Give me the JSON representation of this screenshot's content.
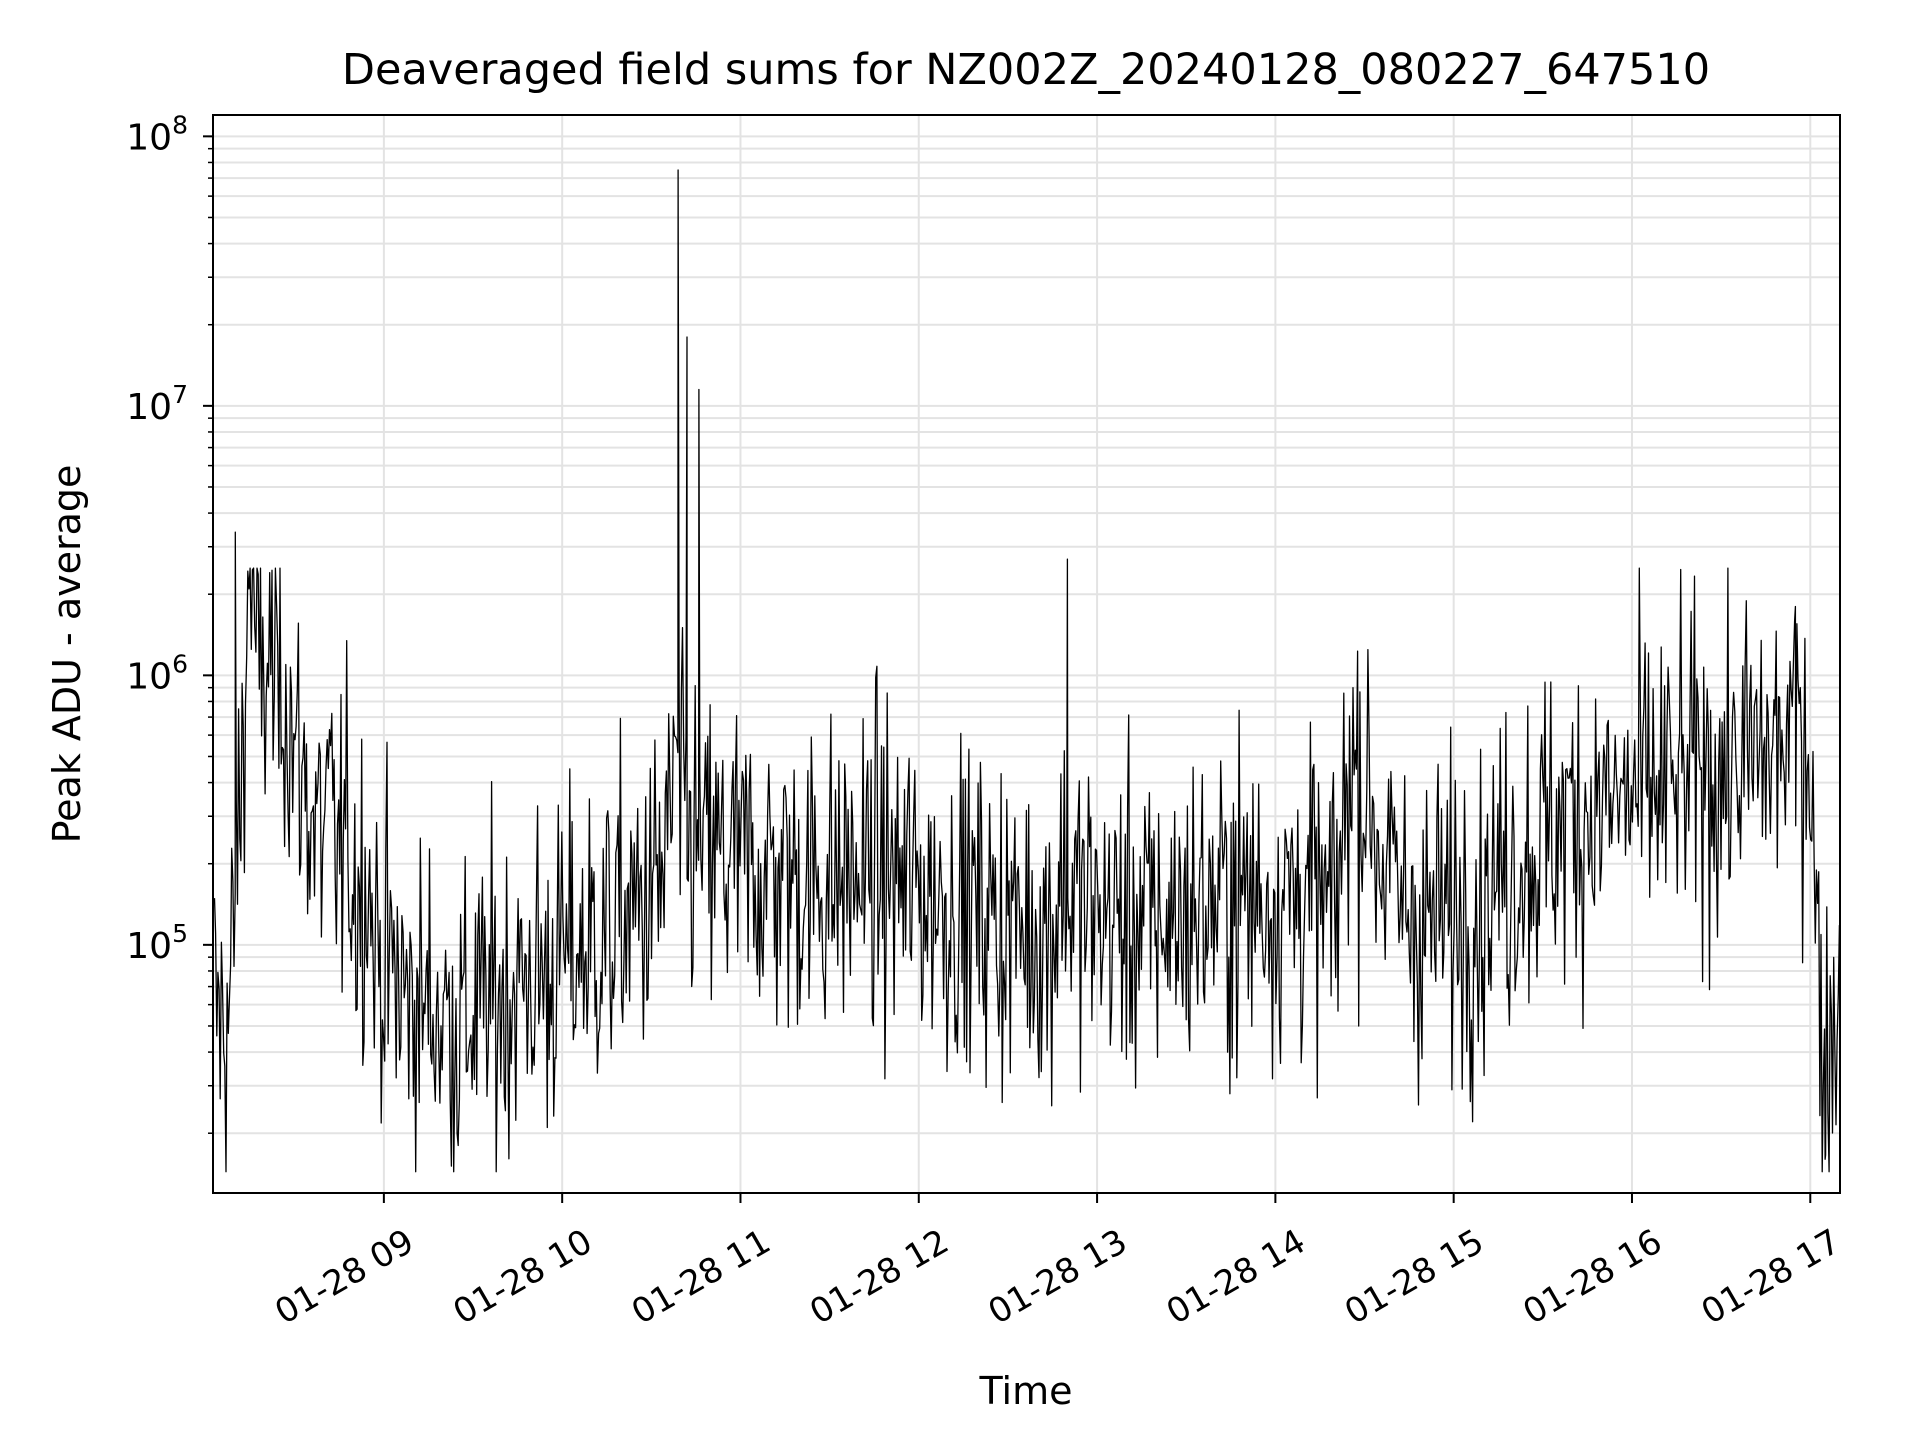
{
  "chart_data": {
    "type": "line",
    "title": "Deaveraged field sums for NZ002Z_20240128_080227_647510",
    "xlabel": "Time",
    "ylabel": "Peak ADU - average",
    "yscale": "log",
    "ylim": [
      12000,
      120000000
    ],
    "xlim": [
      "2024-01-28 08:02:30",
      "2024-01-28 17:10:00"
    ],
    "grid": true,
    "x_ticks": [
      {
        "time": "2024-01-28 09:00",
        "label": "01-28 09"
      },
      {
        "time": "2024-01-28 10:00",
        "label": "01-28 10"
      },
      {
        "time": "2024-01-28 11:00",
        "label": "01-28 11"
      },
      {
        "time": "2024-01-28 12:00",
        "label": "01-28 12"
      },
      {
        "time": "2024-01-28 13:00",
        "label": "01-28 13"
      },
      {
        "time": "2024-01-28 14:00",
        "label": "01-28 14"
      },
      {
        "time": "2024-01-28 15:00",
        "label": "01-28 15"
      },
      {
        "time": "2024-01-28 16:00",
        "label": "01-28 16"
      },
      {
        "time": "2024-01-28 17:00",
        "label": "01-28 17"
      }
    ],
    "y_ticks": [
      {
        "value": 100000,
        "base": "10",
        "exp": "5"
      },
      {
        "value": 1000000,
        "base": "10",
        "exp": "6"
      },
      {
        "value": 10000000,
        "base": "10",
        "exp": "7"
      },
      {
        "value": 100000000,
        "base": "10",
        "exp": "8"
      }
    ],
    "series": [
      {
        "color": "#000000",
        "x": [
          "2024-01-28 08:03",
          "2024-01-28 08:05",
          "2024-01-28 08:08",
          "2024-01-28 08:10",
          "2024-01-28 08:13",
          "2024-01-28 08:15",
          "2024-01-28 08:18",
          "2024-01-28 08:20",
          "2024-01-28 08:22",
          "2024-01-28 08:25",
          "2024-01-28 08:28",
          "2024-01-28 08:30",
          "2024-01-28 08:33",
          "2024-01-28 08:36",
          "2024-01-28 08:39",
          "2024-01-28 08:42",
          "2024-01-28 08:45",
          "2024-01-28 08:48",
          "2024-01-28 08:51",
          "2024-01-28 08:54",
          "2024-01-28 08:57",
          "2024-01-28 09:00",
          "2024-01-28 09:05",
          "2024-01-28 09:10",
          "2024-01-28 09:15",
          "2024-01-28 09:20",
          "2024-01-28 09:25",
          "2024-01-28 09:30",
          "2024-01-28 09:35",
          "2024-01-28 09:40",
          "2024-01-28 09:45",
          "2024-01-28 09:50",
          "2024-01-28 09:55",
          "2024-01-28 10:00",
          "2024-01-28 10:10",
          "2024-01-28 10:20",
          "2024-01-28 10:30",
          "2024-01-28 10:35",
          "2024-01-28 10:38",
          "2024-01-28 10:40",
          "2024-01-28 10:42",
          "2024-01-28 10:44",
          "2024-01-28 10:47",
          "2024-01-28 10:50",
          "2024-01-28 11:00",
          "2024-01-28 11:15",
          "2024-01-28 11:30",
          "2024-01-28 11:45",
          "2024-01-28 12:00",
          "2024-01-28 12:15",
          "2024-01-28 12:30",
          "2024-01-28 12:45",
          "2024-01-28 12:48",
          "2024-01-28 12:50",
          "2024-01-28 13:00",
          "2024-01-28 13:15",
          "2024-01-28 13:30",
          "2024-01-28 13:45",
          "2024-01-28 14:00",
          "2024-01-28 14:10",
          "2024-01-28 14:15",
          "2024-01-28 14:20",
          "2024-01-28 14:25",
          "2024-01-28 14:30",
          "2024-01-28 14:40",
          "2024-01-28 14:50",
          "2024-01-28 15:00",
          "2024-01-28 15:10",
          "2024-01-28 15:20",
          "2024-01-28 15:30",
          "2024-01-28 15:40",
          "2024-01-28 15:50",
          "2024-01-28 16:00",
          "2024-01-28 16:15",
          "2024-01-28 16:30",
          "2024-01-28 16:45",
          "2024-01-28 16:55",
          "2024-01-28 16:58",
          "2024-01-28 17:00",
          "2024-01-28 17:03",
          "2024-01-28 17:05",
          "2024-01-28 17:08",
          "2024-01-28 17:10"
        ],
        "y": [
          60000,
          50000,
          55000,
          150000,
          700000,
          3000000,
          900000,
          1000000,
          1100000,
          1000000,
          800000,
          500000,
          400000,
          300000,
          250000,
          300000,
          200000,
          250000,
          150000,
          200000,
          100000,
          90000,
          70000,
          60000,
          60000,
          55000,
          50000,
          55000,
          60000,
          65000,
          70000,
          75000,
          80000,
          90000,
          100000,
          120000,
          150000,
          200000,
          500000,
          300000,
          250000,
          230000,
          220000,
          210000,
          200000,
          180000,
          170000,
          190000,
          160000,
          140000,
          120000,
          110000,
          200000,
          150000,
          130000,
          120000,
          130000,
          150000,
          150000,
          160000,
          140000,
          120000,
          500000,
          400000,
          150000,
          120000,
          130000,
          150000,
          200000,
          250000,
          300000,
          320000,
          350000,
          400000,
          450000,
          500000,
          600000,
          700000,
          550000,
          60000,
          40000,
          50000,
          90000
        ],
        "spikes": [
          {
            "time": "2024-01-28 08:10",
            "value": 3400000
          },
          {
            "time": "2024-01-28 10:39",
            "value": 75000000
          },
          {
            "time": "2024-01-28 10:42",
            "value": 18000000
          },
          {
            "time": "2024-01-28 10:46",
            "value": 11500000
          },
          {
            "time": "2024-01-28 12:50",
            "value": 2700000
          },
          {
            "time": "2024-01-28 16:55",
            "value": 1800000
          },
          {
            "time": "2024-01-28 17:05",
            "value": 16000
          },
          {
            "time": "2024-01-28 09:25",
            "value": 18000
          },
          {
            "time": "2024-01-28 09:55",
            "value": 21000
          }
        ]
      }
    ]
  }
}
